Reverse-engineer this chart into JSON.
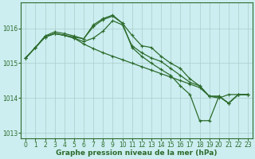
{
  "background_color": "#cceef0",
  "grid_color": "#b8dde0",
  "line_color": "#2d6b2d",
  "xlabel": "Graphe pression niveau de la mer (hPa)",
  "xlabel_fontsize": 6.5,
  "tick_fontsize": 5.5,
  "ylim": [
    1012.85,
    1016.75
  ],
  "yticks": [
    1013,
    1014,
    1015,
    1016
  ],
  "xticks": [
    0,
    1,
    2,
    3,
    4,
    5,
    6,
    7,
    8,
    9,
    10,
    11,
    12,
    13,
    14,
    15,
    16,
    17,
    18,
    19,
    20,
    21,
    22,
    23
  ],
  "series": [
    [
      1015.15,
      1015.45,
      1015.75,
      1015.85,
      1015.8,
      1015.75,
      1015.7,
      1016.05,
      1016.25,
      1016.35,
      1016.15,
      1015.8,
      1015.5,
      1015.45,
      1015.2,
      1015.0,
      1014.85,
      1014.55,
      1014.35,
      1014.05,
      1014.05,
      1013.85,
      1014.1,
      1014.1
    ],
    [
      1015.15,
      1015.45,
      1015.75,
      1015.85,
      1015.8,
      1015.72,
      1015.62,
      1015.72,
      1015.92,
      1016.22,
      1016.1,
      1015.5,
      1015.3,
      1015.15,
      1015.05,
      1014.85,
      1014.65,
      1014.45,
      1014.35,
      1014.05,
      1014.0,
      1014.1,
      1014.1,
      1014.1
    ],
    [
      1015.15,
      1015.45,
      1015.75,
      1015.85,
      1015.8,
      1015.72,
      1015.55,
      1015.42,
      1015.3,
      1015.2,
      1015.1,
      1015.0,
      1014.9,
      1014.8,
      1014.7,
      1014.6,
      1014.5,
      1014.4,
      1014.3,
      1014.05,
      1014.05,
      1013.85,
      1014.1,
      1014.1
    ],
    [
      1015.15,
      1015.45,
      1015.78,
      1015.9,
      1015.85,
      1015.78,
      1015.7,
      1016.1,
      1016.28,
      1016.38,
      1016.15,
      1015.45,
      1015.2,
      1015.0,
      1014.82,
      1014.65,
      1014.35,
      1014.1,
      1013.35,
      1013.35,
      1014.05,
      1013.85,
      1014.1,
      1014.1
    ]
  ]
}
